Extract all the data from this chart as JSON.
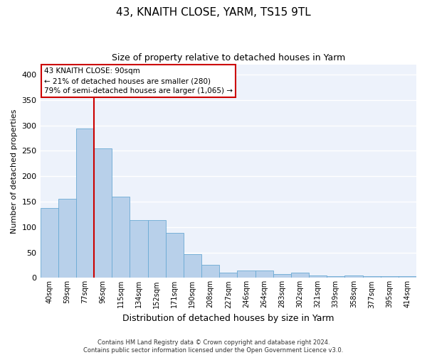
{
  "title1": "43, KNAITH CLOSE, YARM, TS15 9TL",
  "title2": "Size of property relative to detached houses in Yarm",
  "xlabel": "Distribution of detached houses by size in Yarm",
  "ylabel": "Number of detached properties",
  "categories": [
    "40sqm",
    "59sqm",
    "77sqm",
    "96sqm",
    "115sqm",
    "134sqm",
    "152sqm",
    "171sqm",
    "190sqm",
    "208sqm",
    "227sqm",
    "246sqm",
    "264sqm",
    "283sqm",
    "302sqm",
    "321sqm",
    "339sqm",
    "358sqm",
    "377sqm",
    "395sqm",
    "414sqm"
  ],
  "values": [
    138,
    155,
    294,
    255,
    160,
    113,
    113,
    88,
    47,
    25,
    10,
    15,
    15,
    7,
    10,
    5,
    4,
    5,
    3,
    4,
    3
  ],
  "bar_color": "#b8d0ea",
  "bar_edge_color": "#6aaad4",
  "vline_color": "#cc0000",
  "annotation_box_text": "43 KNAITH CLOSE: 90sqm\n← 21% of detached houses are smaller (280)\n79% of semi-detached houses are larger (1,065) →",
  "ylim": [
    0,
    420
  ],
  "yticks": [
    0,
    50,
    100,
    150,
    200,
    250,
    300,
    350,
    400
  ],
  "footer": "Contains HM Land Registry data © Crown copyright and database right 2024.\nContains public sector information licensed under the Open Government Licence v3.0.",
  "background_color": "#edf2fb",
  "grid_color": "#ffffff"
}
